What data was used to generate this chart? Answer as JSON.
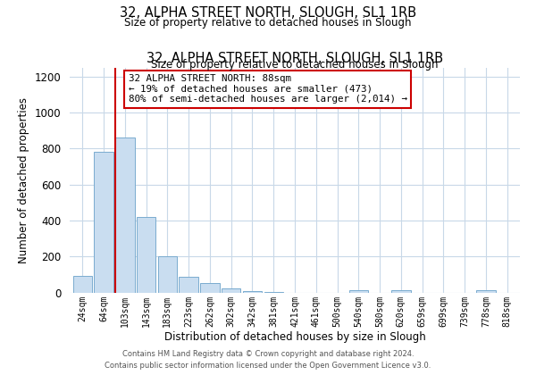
{
  "title": "32, ALPHA STREET NORTH, SLOUGH, SL1 1RB",
  "subtitle": "Size of property relative to detached houses in Slough",
  "xlabel": "Distribution of detached houses by size in Slough",
  "ylabel": "Number of detached properties",
  "bar_labels": [
    "24sqm",
    "64sqm",
    "103sqm",
    "143sqm",
    "183sqm",
    "223sqm",
    "262sqm",
    "302sqm",
    "342sqm",
    "381sqm",
    "421sqm",
    "461sqm",
    "500sqm",
    "540sqm",
    "580sqm",
    "620sqm",
    "659sqm",
    "699sqm",
    "739sqm",
    "778sqm",
    "818sqm"
  ],
  "bar_values": [
    93,
    780,
    860,
    420,
    200,
    85,
    52,
    22,
    8,
    2,
    0,
    0,
    0,
    12,
    0,
    12,
    0,
    0,
    0,
    12,
    0
  ],
  "bar_color": "#c9ddf0",
  "bar_edge_color": "#7aabcf",
  "ylim": [
    0,
    1250
  ],
  "yticks": [
    0,
    200,
    400,
    600,
    800,
    1000,
    1200
  ],
  "property_line_color": "#cc0000",
  "annotation_title": "32 ALPHA STREET NORTH: 88sqm",
  "annotation_line1": "← 19% of detached houses are smaller (473)",
  "annotation_line2": "80% of semi-detached houses are larger (2,014) →",
  "annotation_box_color": "#ffffff",
  "annotation_box_edge_color": "#cc0000",
  "footer1": "Contains HM Land Registry data © Crown copyright and database right 2024.",
  "footer2": "Contains public sector information licensed under the Open Government Licence v3.0.",
  "background_color": "#ffffff",
  "grid_color": "#c8d8e8"
}
